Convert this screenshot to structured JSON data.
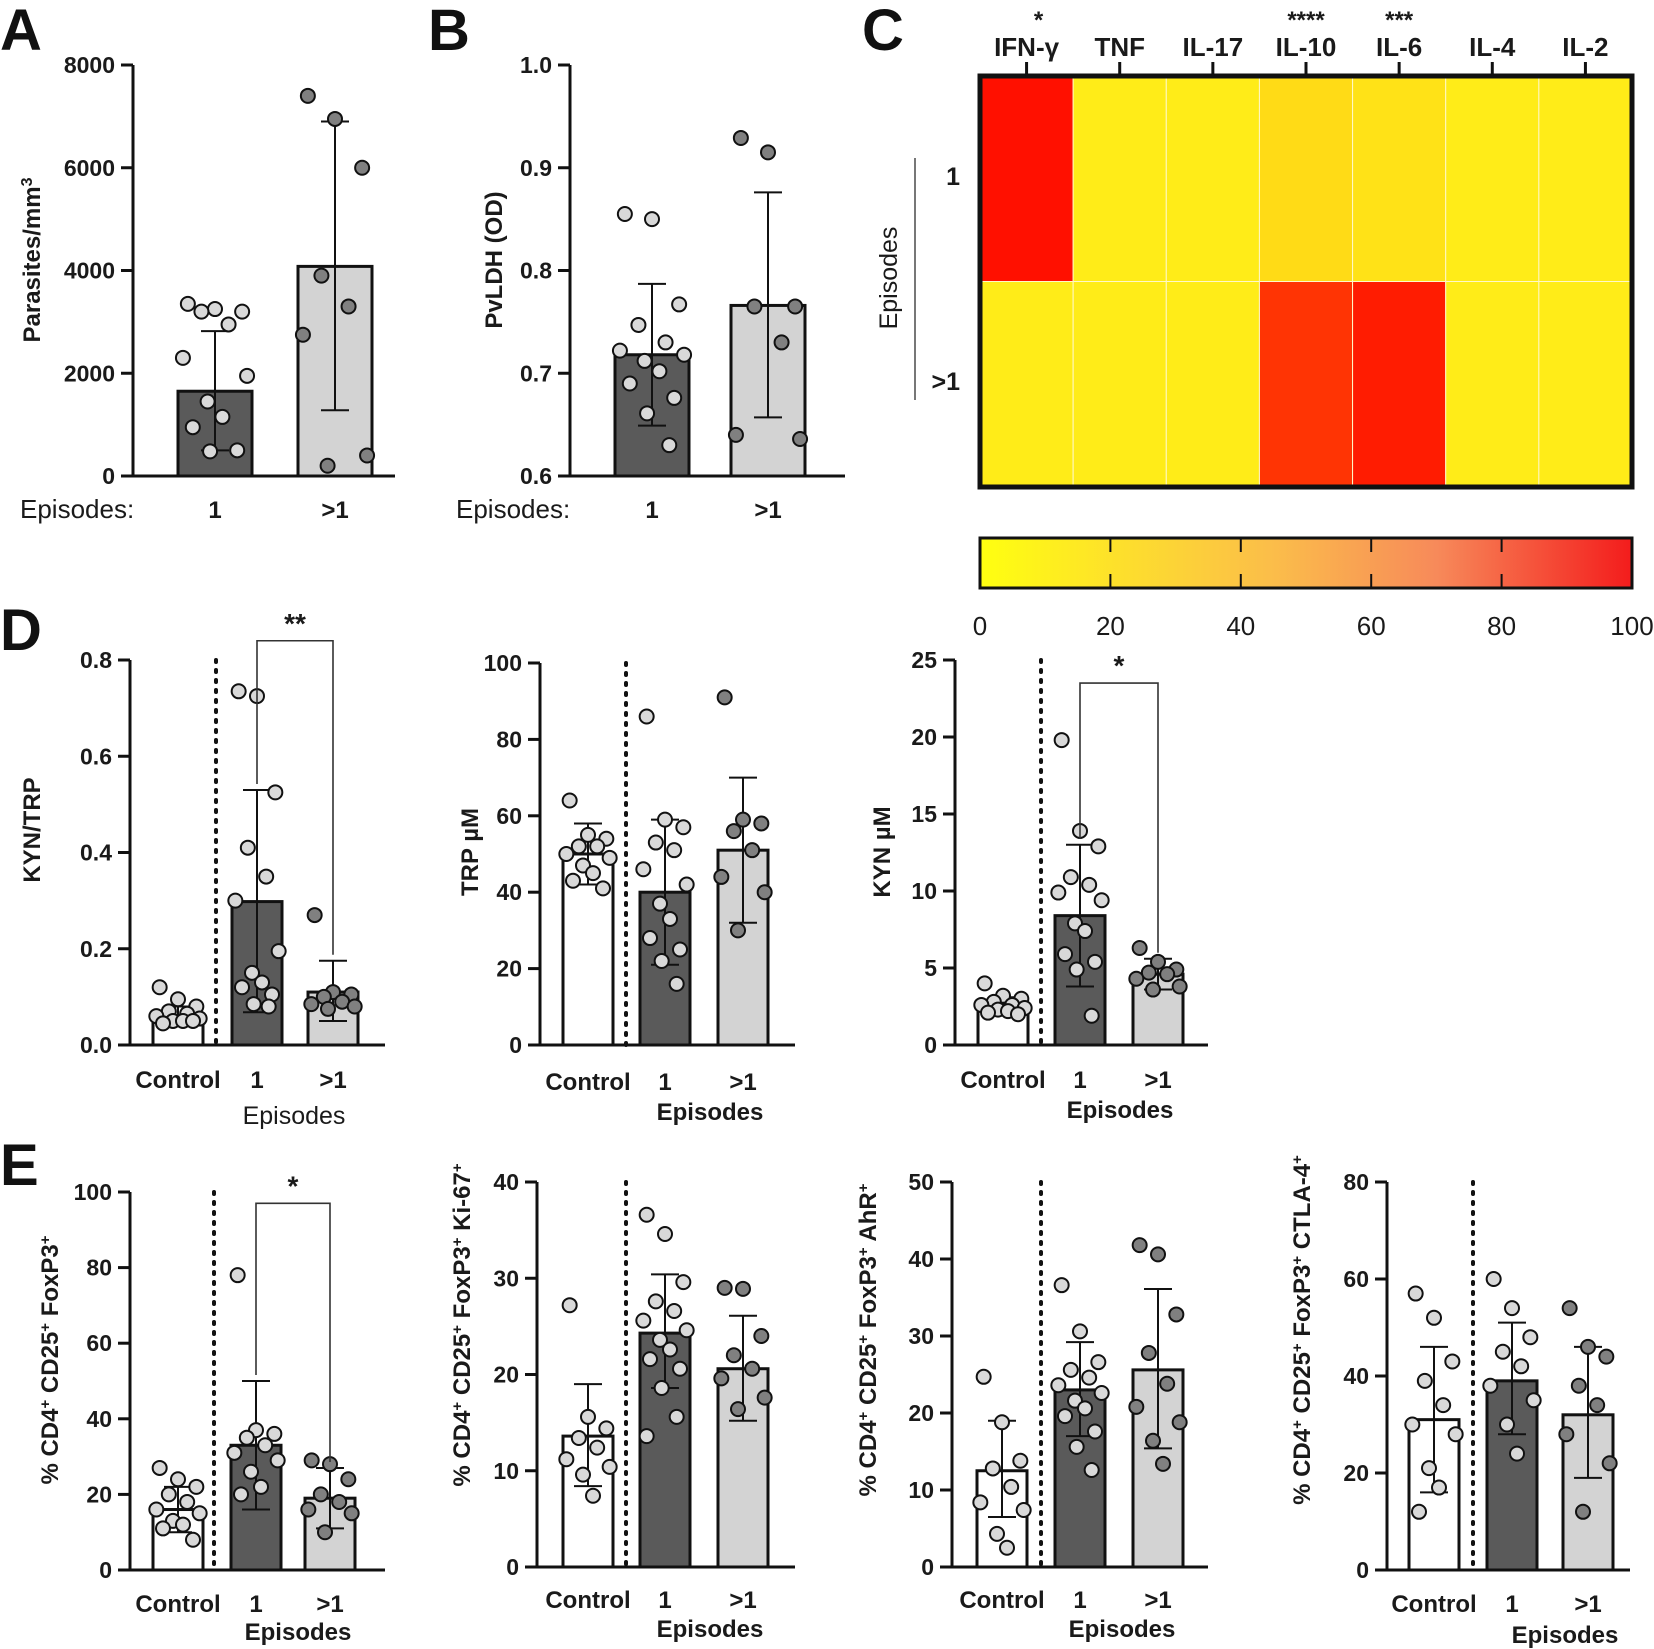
{
  "panel_letters": [
    "A",
    "B",
    "C",
    "D",
    "E"
  ],
  "colors": {
    "control": "#ffffff",
    "one": "#5a5a5a",
    "multi": "#d3d3d3",
    "dot_light": "#d9d9d9",
    "dot_dark": "#808080",
    "heat_low": "#ffff1a",
    "heat_high": "#ff0000"
  },
  "chart_data": [
    {
      "id": "A",
      "type": "bar",
      "ylabel": "Parasites/mm3",
      "ylim": [
        0,
        8000
      ],
      "yticks": [
        0,
        2000,
        4000,
        6000,
        8000
      ],
      "group_title": "Episodes:",
      "categories": [
        "1",
        ">1"
      ],
      "means": [
        1650,
        4080
      ],
      "sd_low": [
        500,
        1280
      ],
      "sd_high": [
        2820,
        6900
      ],
      "points": [
        [
          3350,
          3250,
          3200,
          3200,
          2950,
          2300,
          1950,
          1450,
          1150,
          950,
          500,
          480
        ],
        [
          7400,
          6950,
          6000,
          3900,
          3300,
          2750,
          400,
          200
        ]
      ]
    },
    {
      "id": "B",
      "type": "bar",
      "ylabel": "PvLDH (OD)",
      "ylim": [
        0.6,
        1.0
      ],
      "yticks": [
        "0.6",
        "0.7",
        "0.8",
        "0.9",
        "1.0"
      ],
      "group_title": "Episodes:",
      "categories": [
        "1",
        ">1"
      ],
      "means": [
        0.718,
        0.766
      ],
      "sd_low": [
        0.649,
        0.657
      ],
      "sd_high": [
        0.787,
        0.876
      ],
      "points": [
        [
          0.855,
          0.85,
          0.767,
          0.747,
          0.73,
          0.722,
          0.718,
          0.712,
          0.702,
          0.69,
          0.676,
          0.661,
          0.63
        ],
        [
          0.929,
          0.915,
          0.765,
          0.765,
          0.73,
          0.64,
          0.636
        ]
      ]
    },
    {
      "id": "C",
      "type": "heatmap",
      "columns": [
        "IFN-γ",
        "TNF",
        "IL-17",
        "IL-10",
        "IL-6",
        "IL-4",
        "IL-2"
      ],
      "significance": [
        "*",
        "",
        "",
        "****",
        "***",
        "",
        ""
      ],
      "rows": [
        "1",
        ">1"
      ],
      "row_title": "Episodes",
      "values": [
        [
          100,
          8,
          8,
          15,
          12,
          8,
          8
        ],
        [
          8,
          8,
          8,
          85,
          95,
          8,
          8
        ]
      ],
      "colorbar_ticks": [
        "0",
        "20",
        "40",
        "60",
        "80",
        "100"
      ]
    },
    {
      "id": "D1",
      "type": "bar",
      "ylabel": "KYN/TRP",
      "ylim": [
        0,
        0.8
      ],
      "yticks": [
        "0.0",
        "0.2",
        "0.4",
        "0.6",
        "0.8"
      ],
      "categories": [
        "Control",
        "1",
        ">1"
      ],
      "group_title": "Episodes",
      "means": [
        0.058,
        0.298,
        0.11
      ],
      "sd_low": [
        0.042,
        0.068,
        0.05
      ],
      "sd_high": [
        0.08,
        0.53,
        0.175
      ],
      "points": [
        [
          0.12,
          0.095,
          0.08,
          0.07,
          0.065,
          0.06,
          0.055,
          0.05,
          0.05,
          0.045,
          0.05
        ],
        [
          0.735,
          0.725,
          0.525,
          0.41,
          0.35,
          0.3,
          0.195,
          0.15,
          0.13,
          0.12,
          0.105,
          0.085,
          0.08
        ],
        [
          0.27,
          0.11,
          0.105,
          0.1,
          0.09,
          0.085,
          0.08,
          0.075
        ]
      ],
      "significance": {
        "from": 1,
        "to": 2,
        "label": "**",
        "y": 0.84
      }
    },
    {
      "id": "D2",
      "type": "bar",
      "ylabel": "TRP µM",
      "ylim": [
        0,
        100
      ],
      "yticks": [
        0,
        20,
        40,
        60,
        80,
        100
      ],
      "categories": [
        "Control",
        "1",
        ">1"
      ],
      "group_title": "Episodes",
      "means": [
        50,
        40,
        51
      ],
      "sd_low": [
        42,
        21,
        32
      ],
      "sd_high": [
        58,
        59,
        70
      ],
      "points": [
        [
          64,
          55,
          54,
          52,
          52,
          50,
          49,
          47,
          45,
          43,
          41
        ],
        [
          86,
          59,
          57,
          53,
          51,
          46,
          42,
          37,
          33,
          28,
          25,
          22,
          16
        ],
        [
          91,
          59,
          58,
          56,
          51,
          44,
          40,
          30
        ]
      ]
    },
    {
      "id": "D3",
      "type": "bar",
      "ylabel": "KYN µM",
      "ylim": [
        0,
        25
      ],
      "yticks": [
        0,
        5,
        10,
        15,
        20,
        25
      ],
      "categories": [
        "Control",
        "1",
        ">1"
      ],
      "group_title": "Episodes",
      "means": [
        2.6,
        8.4,
        4.6
      ],
      "sd_low": [
        2.1,
        3.8,
        3.6
      ],
      "sd_high": [
        3.1,
        13.0,
        5.6
      ],
      "points": [
        [
          4.0,
          3.2,
          3.0,
          2.8,
          2.6,
          2.6,
          2.4,
          2.3,
          2.2,
          2.1,
          2.0
        ],
        [
          19.8,
          13.9,
          12.9,
          10.9,
          10.4,
          9.9,
          9.4,
          7.9,
          7.4,
          5.9,
          5.4,
          4.9,
          1.9
        ],
        [
          6.3,
          5.4,
          4.9,
          4.7,
          4.6,
          4.3,
          3.8,
          3.6
        ]
      ],
      "significance": {
        "from": 1,
        "to": 2,
        "label": "*",
        "y": 23.5
      }
    },
    {
      "id": "E1",
      "type": "bar",
      "ylabel": "% CD4+ CD25+ FoxP3+",
      "ylim": [
        0,
        100
      ],
      "yticks": [
        0,
        20,
        40,
        60,
        80,
        100
      ],
      "categories": [
        "Control",
        "1",
        ">1"
      ],
      "group_title": "Episodes",
      "means": [
        16,
        33,
        19
      ],
      "sd_low": [
        10,
        16,
        11
      ],
      "sd_high": [
        22,
        50,
        27
      ],
      "points": [
        [
          27,
          24,
          22,
          20,
          18,
          16,
          15,
          13,
          12,
          11,
          8
        ],
        [
          78,
          37,
          36,
          35,
          33,
          31,
          29,
          26,
          22,
          20
        ],
        [
          29,
          28,
          24,
          20,
          18,
          16,
          15,
          10
        ]
      ],
      "significance": {
        "from": 1,
        "to": 2,
        "label": "*",
        "y": 97
      }
    },
    {
      "id": "E2",
      "type": "bar",
      "ylabel": "% CD4+ CD25+ FoxP3+ Ki-67+",
      "ylim": [
        0,
        40
      ],
      "yticks": [
        0,
        10,
        20,
        30,
        40
      ],
      "categories": [
        "Control",
        "1",
        ">1"
      ],
      "group_title": "Episodes",
      "means": [
        13.6,
        24.3,
        20.6
      ],
      "sd_low": [
        8.4,
        18.6,
        15.2
      ],
      "sd_high": [
        19.0,
        30.4,
        26.1
      ],
      "points": [
        [
          27.2,
          15.6,
          14.4,
          13.4,
          12.4,
          11.2,
          10.4,
          9.6,
          7.4
        ],
        [
          36.6,
          34.6,
          29.6,
          27.6,
          26.6,
          25.6,
          24.6,
          23.6,
          22.6,
          21.6,
          20.6,
          18.6,
          15.6,
          13.6
        ],
        [
          29.0,
          28.9,
          24.0,
          22.0,
          20.6,
          19.6,
          17.6,
          16.4
        ]
      ]
    },
    {
      "id": "E3",
      "type": "bar",
      "ylabel": "% CD4+ CD25+ FoxP3+ AhR+",
      "ylim": [
        0,
        50
      ],
      "yticks": [
        0,
        10,
        20,
        30,
        40,
        50
      ],
      "categories": [
        "Control",
        "1",
        ">1"
      ],
      "group_title": "Episodes",
      "means": [
        12.5,
        23.0,
        25.6
      ],
      "sd_low": [
        6.5,
        17.0,
        15.4
      ],
      "sd_high": [
        19.0,
        29.2,
        36.1
      ],
      "points": [
        [
          24.7,
          18.8,
          13.8,
          12.8,
          10.4,
          8.4,
          7.4,
          4.3,
          2.5
        ],
        [
          36.6,
          30.6,
          26.6,
          25.6,
          24.6,
          23.6,
          22.6,
          21.6,
          20.6,
          19.6,
          17.6,
          15.6,
          12.6
        ],
        [
          41.8,
          40.6,
          32.8,
          27.8,
          23.8,
          20.8,
          18.8,
          16.4,
          13.4
        ]
      ]
    },
    {
      "id": "E4",
      "type": "bar",
      "ylabel": "% CD4+ CD25+ FoxP3+ CTLA-4+",
      "ylim": [
        0,
        80
      ],
      "yticks": [
        0,
        20,
        40,
        60,
        80
      ],
      "categories": [
        "Control",
        "1",
        ">1"
      ],
      "group_title": "Episodes",
      "means": [
        31,
        39,
        32
      ],
      "sd_low": [
        16,
        28,
        19
      ],
      "sd_high": [
        46,
        51,
        46
      ],
      "points": [
        [
          57,
          52,
          43,
          39,
          34,
          30,
          28,
          21,
          17,
          12
        ],
        [
          60,
          54,
          48,
          45,
          42,
          38,
          35,
          30,
          24
        ],
        [
          54,
          46,
          44,
          38,
          34,
          28,
          22,
          12
        ]
      ]
    }
  ]
}
